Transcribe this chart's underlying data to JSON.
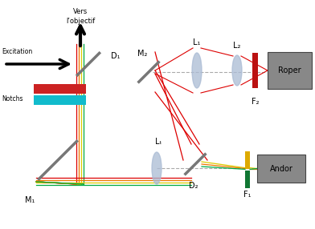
{
  "background": "#ffffff",
  "fig_width": 3.92,
  "fig_height": 2.86,
  "dpi": 100,
  "colors": {
    "red": "#dd0000",
    "orange": "#ee7700",
    "yellow": "#ddcc00",
    "green": "#00aa44",
    "gray_box": "#888888",
    "mirror_gray": "#777777",
    "lens_blue": "#aabbd4",
    "filter_red": "#bb1111",
    "filter_green": "#117733",
    "filter_yellow": "#ddaa00",
    "notch_red": "#cc2222",
    "notch_cyan": "#11bbcc",
    "dashed": "#aaaaaa"
  },
  "labels": {
    "vers": "Vers",
    "lobjectif": "l’objectif",
    "excitation": "Excitation",
    "notchs": "Notchs",
    "D1": "D₁",
    "D2": "D₂",
    "M1": "M₁",
    "M2": "M₂",
    "L1": "L₁",
    "L2": "L₂",
    "Lt": "Lₜ",
    "F1": "F₁",
    "F2": "F₂",
    "Roper": "Roper",
    "Andor": "Andor"
  }
}
